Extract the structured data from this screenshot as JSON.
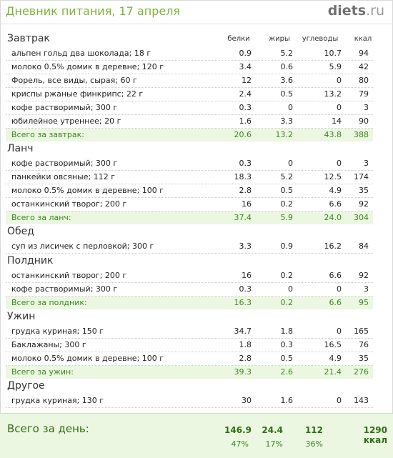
{
  "header": {
    "title": "Дневник питания, 17 апреля",
    "logo_main": "diets",
    "logo_tld": ".ru"
  },
  "columns": {
    "protein": "белки",
    "fat": "жиры",
    "carbs": "углеводы",
    "kcal": "ккал"
  },
  "sections": [
    {
      "title": "Завтрак",
      "items": [
        {
          "name": "альпен гольд два шоколада; 18 г",
          "protein": "0.9",
          "fat": "5.2",
          "carbs": "10.7",
          "kcal": "94"
        },
        {
          "name": "молоко 0.5%  домик в деревне; 120 г",
          "protein": "3.4",
          "fat": "0.6",
          "carbs": "5.9",
          "kcal": "42"
        },
        {
          "name": "Форель, все виды, сырая; 60 г",
          "protein": "12",
          "fat": "3.6",
          "carbs": "0",
          "kcal": "80"
        },
        {
          "name": "криспы ржаные финкрипс; 22 г",
          "protein": "2.4",
          "fat": "0.5",
          "carbs": "13.2",
          "kcal": "79"
        },
        {
          "name": "кофе растворимый; 300 г",
          "protein": "0.3",
          "fat": "0",
          "carbs": "0",
          "kcal": "3"
        },
        {
          "name": "юбилейное утреннее; 20 г",
          "protein": "1.6",
          "fat": "3.3",
          "carbs": "14",
          "kcal": "90"
        }
      ],
      "total": {
        "label": "Всего за завтрак:",
        "protein": "20.6",
        "fat": "13.2",
        "carbs": "43.8",
        "kcal": "388"
      }
    },
    {
      "title": "Ланч",
      "items": [
        {
          "name": "кофе растворимый; 300 г",
          "protein": "0.3",
          "fat": "0",
          "carbs": "0",
          "kcal": "3"
        },
        {
          "name": "панкейки овсяные; 112 г",
          "protein": "18.3",
          "fat": "5.2",
          "carbs": "12.5",
          "kcal": "174"
        },
        {
          "name": "молоко 0.5%  домик в деревне; 100 г",
          "protein": "2.8",
          "fat": "0.5",
          "carbs": "4.9",
          "kcal": "35"
        },
        {
          "name": "останкинский творог; 200 г",
          "protein": "16",
          "fat": "0.2",
          "carbs": "6.6",
          "kcal": "92"
        }
      ],
      "total": {
        "label": "Всего за ланч:",
        "protein": "37.4",
        "fat": "5.9",
        "carbs": "24.0",
        "kcal": "304"
      }
    },
    {
      "title": "Обед",
      "items": [
        {
          "name": "суп из лисичек с перловкой; 300 г",
          "protein": "3.3",
          "fat": "0.9",
          "carbs": "16.2",
          "kcal": "84"
        }
      ]
    },
    {
      "title": "Полдник",
      "items": [
        {
          "name": "останкинский творог; 200 г",
          "protein": "16",
          "fat": "0.2",
          "carbs": "6.6",
          "kcal": "92"
        },
        {
          "name": "кофе растворимый; 300 г",
          "protein": "0.3",
          "fat": "0",
          "carbs": "0",
          "kcal": "3"
        }
      ],
      "total": {
        "label": "Всего за полдник:",
        "protein": "16.3",
        "fat": "0.2",
        "carbs": "6.6",
        "kcal": "95"
      }
    },
    {
      "title": "Ужин",
      "items": [
        {
          "name": "грудка куриная; 150 г",
          "protein": "34.7",
          "fat": "1.8",
          "carbs": "0",
          "kcal": "165"
        },
        {
          "name": "Баклажаны; 300 г",
          "protein": "1.8",
          "fat": "0.3",
          "carbs": "16.5",
          "kcal": "76"
        },
        {
          "name": "молоко 0.5%  домик в деревне; 100 г",
          "protein": "2.8",
          "fat": "0.5",
          "carbs": "4.9",
          "kcal": "35"
        }
      ],
      "total": {
        "label": "Всего за ужин:",
        "protein": "39.3",
        "fat": "2.6",
        "carbs": "21.4",
        "kcal": "276"
      }
    },
    {
      "title": "Другое",
      "items": [
        {
          "name": "грудка куриная; 130 г",
          "protein": "30",
          "fat": "1.6",
          "carbs": "0",
          "kcal": "143"
        }
      ]
    }
  ],
  "day_total": {
    "label": "Всего за день:",
    "protein": "146.9",
    "fat": "24.4",
    "carbs": "112",
    "kcal": "1290 ккал",
    "protein_pct": "47%",
    "fat_pct": "17%",
    "carbs_pct": "36%"
  }
}
